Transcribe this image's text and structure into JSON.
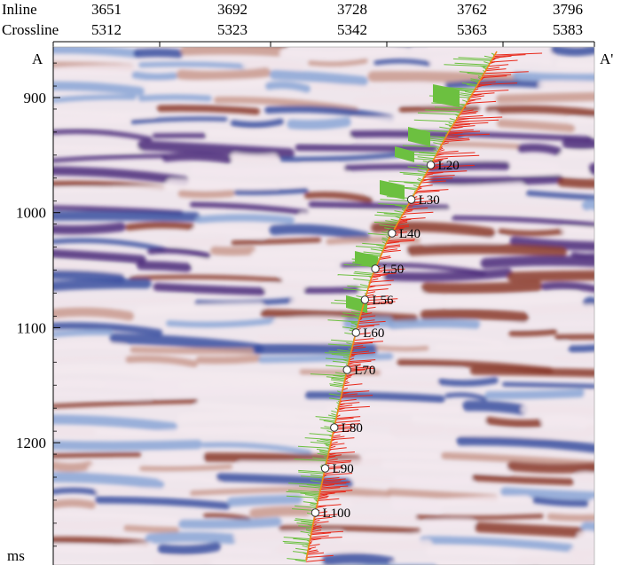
{
  "header": {
    "inline_label": "Inline",
    "crossline_label": "Crossline",
    "inline_values": [
      "3651",
      "3692",
      "3728",
      "3762",
      "3796"
    ],
    "crossline_values": [
      "5312",
      "5323",
      "5342",
      "5363",
      "5383"
    ]
  },
  "section": {
    "left_marker": "A",
    "right_marker": "A'",
    "time_ticks": [
      "900",
      "1000",
      "1100",
      "1200"
    ],
    "time_unit": "ms"
  },
  "well": {
    "markers": [
      "L20",
      "L30",
      "L40",
      "L50",
      "L56",
      "L60",
      "L70",
      "L80",
      "L90",
      "L100"
    ]
  },
  "colors": {
    "trough": "#3a4fa0",
    "peak": "#8a3a2a",
    "deep_purple": "#4a2a7a",
    "log_positive": "#e8281a",
    "log_negative": "#6cc040",
    "well_path": "#f08a1a"
  }
}
